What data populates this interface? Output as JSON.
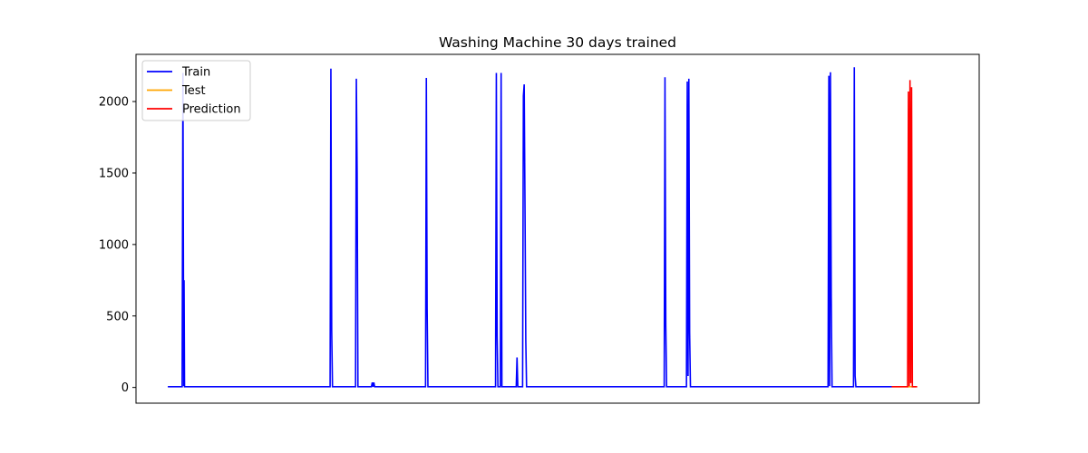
{
  "chart_data": {
    "type": "line",
    "title": "Washing Machine 30 days trained",
    "xlabel": "",
    "ylabel": "",
    "xlim": [
      -2,
      51
    ],
    "ylim": [
      -110,
      2330
    ],
    "x_ticks_visible": false,
    "y_ticks": [
      0,
      500,
      1000,
      1500,
      2000
    ],
    "y_tick_labels": [
      "0",
      "500",
      "1000",
      "1500",
      "2000"
    ],
    "legend": {
      "placement": "top-left",
      "entries": [
        "Train",
        "Test",
        "Prediction"
      ]
    },
    "grid": false,
    "series": [
      {
        "name": "Train",
        "color": "#0000ff",
        "points": [
          [
            0,
            5
          ],
          [
            0.9,
            5
          ],
          [
            0.95,
            2200
          ],
          [
            1.0,
            10
          ],
          [
            1.02,
            750
          ],
          [
            1.05,
            5
          ],
          [
            10.2,
            5
          ],
          [
            10.25,
            2230
          ],
          [
            10.3,
            400
          ],
          [
            10.35,
            5
          ],
          [
            11.8,
            5
          ],
          [
            11.85,
            2160
          ],
          [
            11.9,
            1500
          ],
          [
            11.95,
            5
          ],
          [
            12.8,
            5
          ],
          [
            12.85,
            35
          ],
          [
            12.9,
            5
          ],
          [
            12.95,
            35
          ],
          [
            13.0,
            5
          ],
          [
            16.2,
            5
          ],
          [
            16.25,
            2165
          ],
          [
            16.3,
            550
          ],
          [
            16.35,
            5
          ],
          [
            20.6,
            5
          ],
          [
            20.65,
            2200
          ],
          [
            20.7,
            360
          ],
          [
            20.75,
            5
          ],
          [
            20.9,
            5
          ],
          [
            20.95,
            2200
          ],
          [
            21.0,
            5
          ],
          [
            21.9,
            5
          ],
          [
            21.95,
            210
          ],
          [
            22.0,
            5
          ],
          [
            22.3,
            5
          ],
          [
            22.35,
            2040
          ],
          [
            22.4,
            2120
          ],
          [
            22.45,
            1270
          ],
          [
            22.5,
            330
          ],
          [
            22.55,
            5
          ],
          [
            30.0,
            5
          ],
          [
            31.2,
            5
          ],
          [
            31.25,
            2170
          ],
          [
            31.3,
            440
          ],
          [
            31.35,
            5
          ],
          [
            32.6,
            5
          ],
          [
            32.65,
            2140
          ],
          [
            32.7,
            80
          ],
          [
            32.75,
            2160
          ],
          [
            32.8,
            380
          ],
          [
            32.85,
            5
          ],
          [
            41.5,
            5
          ],
          [
            41.55,
            2180
          ],
          [
            41.6,
            10
          ],
          [
            41.65,
            2205
          ],
          [
            41.7,
            630
          ],
          [
            41.75,
            5
          ],
          [
            43.1,
            5
          ],
          [
            43.15,
            2240
          ],
          [
            43.2,
            80
          ],
          [
            43.25,
            5
          ],
          [
            45.5,
            5
          ]
        ]
      },
      {
        "name": "Test",
        "color": "#ffa500",
        "points": [
          [
            45.5,
            5
          ],
          [
            47.1,
            5
          ]
        ]
      },
      {
        "name": "Prediction",
        "color": "#ff0000",
        "points": [
          [
            45.5,
            5
          ],
          [
            46.5,
            5
          ],
          [
            46.55,
            2070
          ],
          [
            46.6,
            10
          ],
          [
            46.65,
            2150
          ],
          [
            46.7,
            30
          ],
          [
            46.75,
            2100
          ],
          [
            46.8,
            5
          ],
          [
            47.1,
            5
          ]
        ]
      }
    ]
  }
}
